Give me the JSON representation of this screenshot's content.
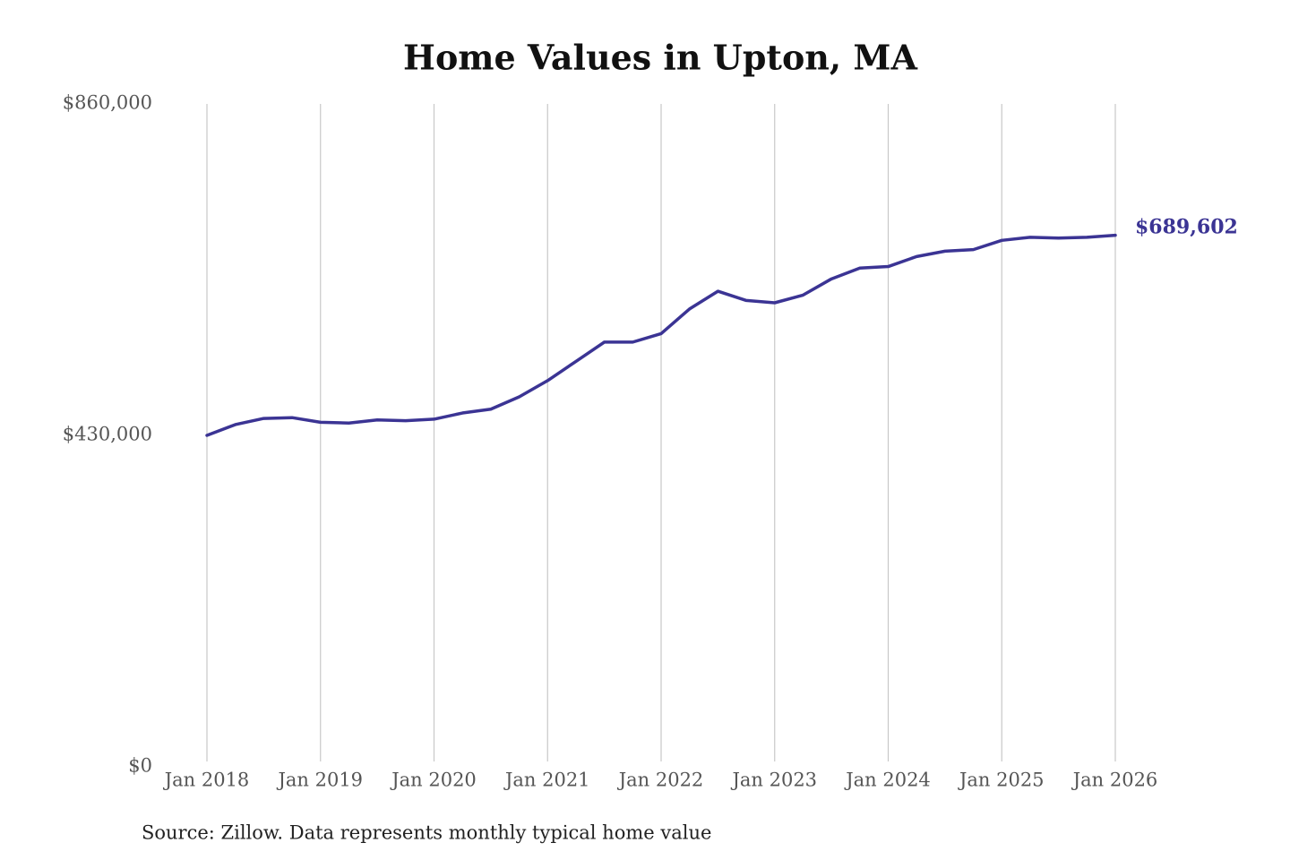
{
  "chart_data": {
    "type": "line",
    "title": "Home Values in Upton, MA",
    "note": "Source: Zillow. Data represents monthly typical home value",
    "x": [
      2018,
      2018.25,
      2018.5,
      2018.75,
      2019,
      2019.25,
      2019.5,
      2019.75,
      2020,
      2020.25,
      2020.5,
      2020.75,
      2021,
      2021.25,
      2021.5,
      2021.75,
      2022,
      2022.25,
      2022.5,
      2022.75,
      2023,
      2023.25,
      2023.5,
      2023.75,
      2024,
      2024.25,
      2024.5,
      2024.75,
      2025,
      2025.25,
      2025.5,
      2025.75,
      2026
    ],
    "series": [
      {
        "name": "Typical home value",
        "color": "#3b3494",
        "values": [
          430000,
          444000,
          452000,
          453000,
          447000,
          446000,
          450000,
          449000,
          451000,
          459000,
          464000,
          480000,
          501000,
          526000,
          551000,
          551000,
          562000,
          594000,
          617000,
          605000,
          602000,
          612000,
          633000,
          647000,
          649000,
          662000,
          669000,
          671000,
          683000,
          687000,
          686000,
          687000,
          689602
        ],
        "value_labels": [
          null,
          null,
          null,
          null,
          null,
          null,
          null,
          null,
          null,
          null,
          null,
          null,
          null,
          null,
          null,
          null,
          null,
          null,
          null,
          null,
          null,
          null,
          null,
          null,
          null,
          null,
          null,
          null,
          null,
          null,
          null,
          null,
          "$689,602"
        ]
      }
    ],
    "xlim": [
      2018,
      2026
    ],
    "xticks": [
      {
        "value": 2018,
        "label": "Jan 2018"
      },
      {
        "value": 2019,
        "label": "Jan 2019"
      },
      {
        "value": 2020,
        "label": "Jan 2020"
      },
      {
        "value": 2021,
        "label": "Jan 2021"
      },
      {
        "value": 2022,
        "label": "Jan 2022"
      },
      {
        "value": 2023,
        "label": "Jan 2023"
      },
      {
        "value": 2024,
        "label": "Jan 2024"
      },
      {
        "value": 2025,
        "label": "Jan 2025"
      },
      {
        "value": 2026,
        "label": "Jan 2026"
      }
    ],
    "ylim": [
      0,
      860000
    ],
    "yticks": [
      {
        "value": 0,
        "label": "$0"
      },
      {
        "value": 430000,
        "label": "$430,000"
      },
      {
        "value": 860000,
        "label": "$860,000"
      }
    ],
    "grid": "x"
  }
}
